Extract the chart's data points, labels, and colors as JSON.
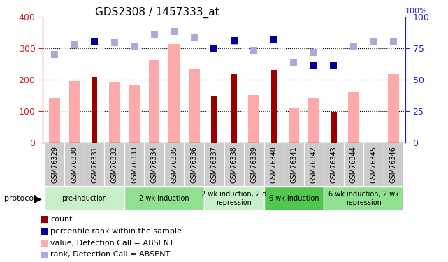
{
  "title": "GDS2308 / 1457333_at",
  "samples": [
    "GSM76329",
    "GSM76330",
    "GSM76331",
    "GSM76332",
    "GSM76333",
    "GSM76334",
    "GSM76335",
    "GSM76336",
    "GSM76337",
    "GSM76338",
    "GSM76339",
    "GSM76340",
    "GSM76341",
    "GSM76342",
    "GSM76343",
    "GSM76344",
    "GSM76345",
    "GSM76346"
  ],
  "count_values": [
    null,
    null,
    210,
    null,
    null,
    null,
    null,
    null,
    148,
    218,
    null,
    233,
    null,
    null,
    98,
    null,
    null,
    null
  ],
  "value_absent": [
    142,
    197,
    null,
    195,
    183,
    263,
    315,
    235,
    null,
    null,
    152,
    null,
    110,
    143,
    null,
    160,
    null,
    218
  ],
  "rank_absent": [
    70,
    78.8,
    80.5,
    79.5,
    77,
    85.5,
    88.8,
    83.8,
    null,
    80.5,
    73.3,
    null,
    64,
    71.8,
    null,
    77,
    80,
    80
  ],
  "percentile_dark": [
    null,
    null,
    80.5,
    null,
    null,
    null,
    null,
    null,
    74.5,
    81.5,
    null,
    82.5,
    null,
    61.5,
    61.5,
    null,
    null,
    null
  ],
  "groups": [
    {
      "label": "pre-induction",
      "start": 0,
      "end": 4,
      "color": "#c8f0c8"
    },
    {
      "label": "2 wk induction",
      "start": 4,
      "end": 8,
      "color": "#90e090"
    },
    {
      "label": "2 wk induction, 2 d\nrepression",
      "start": 8,
      "end": 11,
      "color": "#c8f0c8"
    },
    {
      "label": "6 wk induction",
      "start": 11,
      "end": 14,
      "color": "#50c850"
    },
    {
      "label": "6 wk induction, 2 wk\nrepression",
      "start": 14,
      "end": 18,
      "color": "#90e090"
    }
  ],
  "left_ylim": [
    0,
    400
  ],
  "right_ylim": [
    0,
    100
  ],
  "left_yticks": [
    0,
    100,
    200,
    300,
    400
  ],
  "right_yticks": [
    0,
    25,
    50,
    75,
    100
  ],
  "left_color": "#cc2222",
  "right_color": "#2222cc",
  "count_color": "#990000",
  "value_absent_color": "#ffaaaa",
  "rank_absent_color": "#aaaadd",
  "percentile_dark_color": "#000099",
  "grid_lines": [
    100,
    200,
    300
  ],
  "xticklabel_bg": "#cccccc",
  "plot_bg": "#ffffff",
  "legend_items": [
    {
      "color": "#990000",
      "label": "count"
    },
    {
      "color": "#000099",
      "label": "percentile rank within the sample"
    },
    {
      "color": "#ffaaaa",
      "label": "value, Detection Call = ABSENT"
    },
    {
      "color": "#aaaadd",
      "label": "rank, Detection Call = ABSENT"
    }
  ]
}
